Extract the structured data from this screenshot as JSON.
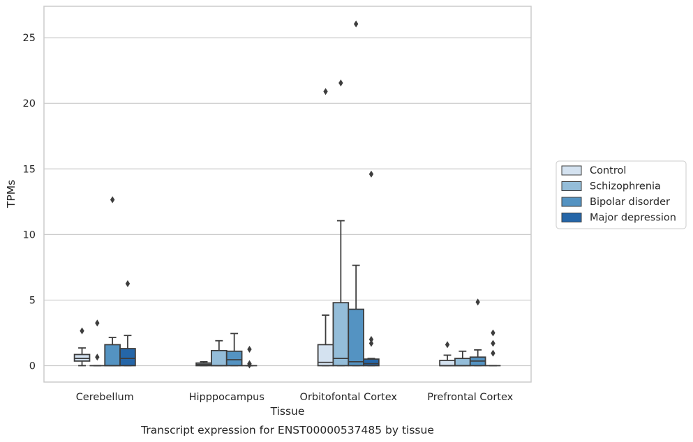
{
  "caption": "Transcript expression for ENST00000537485 by tissue",
  "chart_data": {
    "type": "box",
    "xlabel": "Tissue",
    "ylabel": "TPMs",
    "ylim": [
      -1.25,
      27.4
    ],
    "yticks": [
      0,
      5,
      10,
      15,
      20,
      25
    ],
    "grid": "horizontal",
    "legend_position": "right-outside",
    "categories": [
      "Cerebellum",
      "Hipppocampus",
      "Orbitofontal Cortex",
      "Prefrontal Cortex"
    ],
    "series": [
      {
        "name": "Control",
        "color": "#d4e2f0",
        "boxes": [
          {
            "min": 0.0,
            "q1": 0.35,
            "median": 0.55,
            "q3": 0.85,
            "max": 1.35,
            "outliers": [
              2.65
            ]
          },
          {
            "min": 0.0,
            "q1": 0.0,
            "median": 0.1,
            "q3": 0.2,
            "max": 0.3,
            "outliers": []
          },
          {
            "min": 0.0,
            "q1": 0.0,
            "median": 0.25,
            "q3": 1.6,
            "max": 3.85,
            "outliers": [
              20.9
            ]
          },
          {
            "min": 0.0,
            "q1": 0.0,
            "median": 0.0,
            "q3": 0.4,
            "max": 0.8,
            "outliers": [
              1.6
            ]
          }
        ]
      },
      {
        "name": "Schizophrenia",
        "color": "#94bdd9",
        "boxes": [
          {
            "min": 0.0,
            "q1": 0.0,
            "median": 0.0,
            "q3": 0.0,
            "max": 0.0,
            "outliers": [
              0.65,
              3.25
            ]
          },
          {
            "min": 0.0,
            "q1": 0.0,
            "median": 0.0,
            "q3": 1.15,
            "max": 1.9,
            "outliers": []
          },
          {
            "min": 0.0,
            "q1": 0.0,
            "median": 0.55,
            "q3": 4.8,
            "max": 11.05,
            "outliers": [
              21.55
            ]
          },
          {
            "min": 0.0,
            "q1": 0.0,
            "median": 0.0,
            "q3": 0.55,
            "max": 1.1,
            "outliers": []
          }
        ]
      },
      {
        "name": "Bipolar disorder",
        "color": "#5493c2",
        "boxes": [
          {
            "min": 0.0,
            "q1": 0.0,
            "median": 0.0,
            "q3": 1.6,
            "max": 2.15,
            "outliers": [
              12.65
            ]
          },
          {
            "min": 0.0,
            "q1": 0.0,
            "median": 0.45,
            "q3": 1.1,
            "max": 2.45,
            "outliers": []
          },
          {
            "min": 0.0,
            "q1": 0.0,
            "median": 0.3,
            "q3": 4.3,
            "max": 7.65,
            "outliers": [
              26.05
            ]
          },
          {
            "min": 0.0,
            "q1": 0.0,
            "median": 0.35,
            "q3": 0.65,
            "max": 1.2,
            "outliers": [
              4.85
            ]
          }
        ]
      },
      {
        "name": "Major depression",
        "color": "#2566a8",
        "boxes": [
          {
            "min": 0.0,
            "q1": 0.0,
            "median": 0.55,
            "q3": 1.3,
            "max": 2.3,
            "outliers": [
              6.25
            ]
          },
          {
            "min": 0.0,
            "q1": 0.0,
            "median": 0.0,
            "q3": 0.0,
            "max": 0.0,
            "outliers": [
              1.25,
              0.15,
              0.05
            ]
          },
          {
            "min": 0.0,
            "q1": 0.0,
            "median": 0.15,
            "q3": 0.5,
            "max": 0.55,
            "outliers": [
              14.6,
              2.0,
              1.7
            ]
          },
          {
            "min": 0.0,
            "q1": 0.0,
            "median": 0.0,
            "q3": 0.0,
            "max": 0.0,
            "outliers": [
              2.5,
              1.7,
              0.95
            ]
          }
        ]
      }
    ]
  }
}
